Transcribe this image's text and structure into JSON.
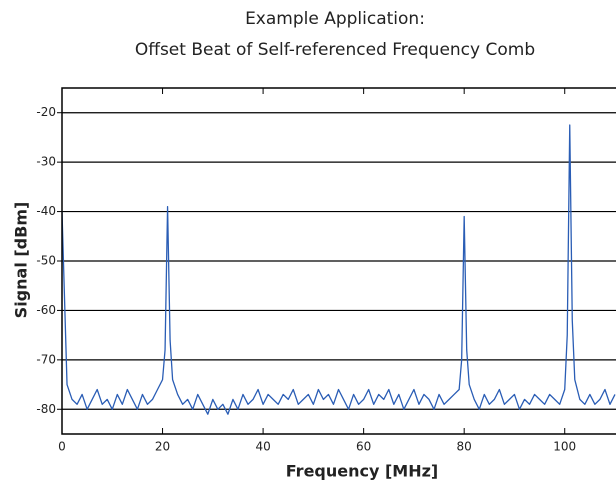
{
  "chart_data": {
    "type": "line",
    "title": [
      "Example Application:",
      "Offset Beat of Self-referenced Frequency Comb"
    ],
    "xlabel": "Frequency [MHz]",
    "ylabel": "Signal [dBm]",
    "color": "#2a5db5",
    "grid": true,
    "xlim": [
      0,
      110
    ],
    "ylim": [
      -85,
      -15
    ],
    "xticks": [
      0,
      20,
      40,
      60,
      80,
      100
    ],
    "yticks": [
      -20,
      -30,
      -40,
      -50,
      -60,
      -70,
      -80
    ],
    "x": [
      0,
      1,
      2,
      3,
      4,
      5,
      6,
      7,
      8,
      9,
      10,
      11,
      12,
      13,
      14,
      15,
      16,
      17,
      18,
      19,
      20,
      20.5,
      21,
      21.5,
      22,
      23,
      24,
      25,
      26,
      27,
      28,
      29,
      30,
      31,
      32,
      33,
      34,
      35,
      36,
      37,
      38,
      39,
      40,
      41,
      42,
      43,
      44,
      45,
      46,
      47,
      48,
      49,
      50,
      51,
      52,
      53,
      54,
      55,
      56,
      57,
      58,
      59,
      60,
      61,
      62,
      63,
      64,
      65,
      66,
      67,
      68,
      69,
      70,
      71,
      72,
      73,
      74,
      75,
      76,
      77,
      78,
      79,
      79.5,
      80,
      80.5,
      81,
      82,
      83,
      84,
      85,
      86,
      87,
      88,
      89,
      90,
      91,
      92,
      93,
      94,
      95,
      96,
      97,
      98,
      99,
      100,
      100.5,
      101,
      101.5,
      102,
      103,
      104,
      105,
      106,
      107,
      108,
      109,
      110
    ],
    "values": [
      -40,
      -75,
      -78,
      -79,
      -77,
      -80,
      -78,
      -76,
      -79,
      -78,
      -80,
      -77,
      -79,
      -76,
      -78,
      -80,
      -77,
      -79,
      -78,
      -76,
      -74,
      -68,
      -39,
      -66,
      -74,
      -77,
      -79,
      -78,
      -80,
      -77,
      -79,
      -81,
      -78,
      -80,
      -79,
      -81,
      -78,
      -80,
      -77,
      -79,
      -78,
      -76,
      -79,
      -77,
      -78,
      -79,
      -77,
      -78,
      -76,
      -79,
      -78,
      -77,
      -79,
      -76,
      -78,
      -77,
      -79,
      -76,
      -78,
      -80,
      -77,
      -79,
      -78,
      -76,
      -79,
      -77,
      -78,
      -76,
      -79,
      -77,
      -80,
      -78,
      -76,
      -79,
      -77,
      -78,
      -80,
      -77,
      -79,
      -78,
      -77,
      -76,
      -70,
      -41,
      -68,
      -75,
      -78,
      -80,
      -77,
      -79,
      -78,
      -76,
      -79,
      -78,
      -77,
      -80,
      -78,
      -79,
      -77,
      -78,
      -79,
      -77,
      -78,
      -79,
      -76,
      -65,
      -22.5,
      -62,
      -74,
      -78,
      -79,
      -77,
      -79,
      -78,
      -76,
      -79,
      -77
    ]
  }
}
